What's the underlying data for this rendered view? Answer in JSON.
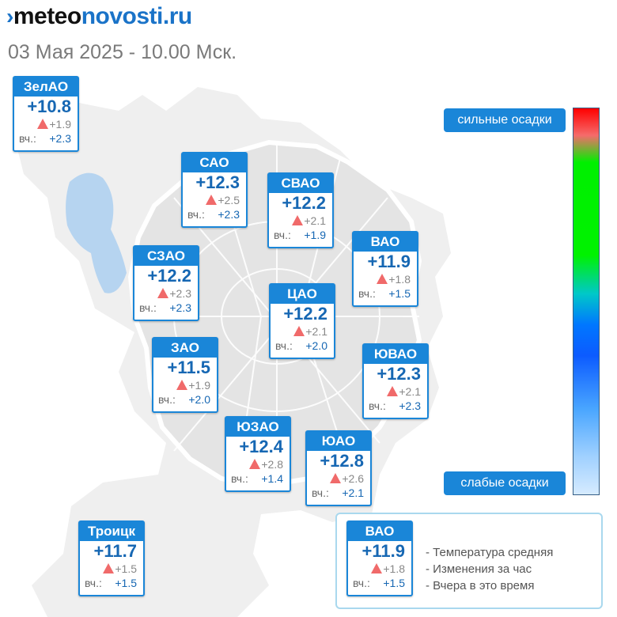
{
  "header": {
    "logo_part1": "meteo",
    "logo_part2": "novosti.ru",
    "subtitle": "03 Мая 2025 - 10.00 Мск."
  },
  "districts": [
    {
      "name": "ЗелАО",
      "temp": "+10.8",
      "change": "+1.9",
      "yesterday_label": "вч.:",
      "yesterday": "+2.3"
    },
    {
      "name": "САО",
      "temp": "+12.3",
      "change": "+2.5",
      "yesterday_label": "вч.:",
      "yesterday": "+2.3"
    },
    {
      "name": "СВАО",
      "temp": "+12.2",
      "change": "+2.1",
      "yesterday_label": "вч.:",
      "yesterday": "+1.9"
    },
    {
      "name": "ВАО",
      "temp": "+11.9",
      "change": "+1.8",
      "yesterday_label": "вч.:",
      "yesterday": "+1.5"
    },
    {
      "name": "СЗАО",
      "temp": "+12.2",
      "change": "+2.3",
      "yesterday_label": "вч.:",
      "yesterday": "+2.3"
    },
    {
      "name": "ЦАО",
      "temp": "+12.2",
      "change": "+2.1",
      "yesterday_label": "вч.:",
      "yesterday": "+2.0"
    },
    {
      "name": "ЗАО",
      "temp": "+11.5",
      "change": "+1.9",
      "yesterday_label": "вч.:",
      "yesterday": "+2.0"
    },
    {
      "name": "ЮВАО",
      "temp": "+12.3",
      "change": "+2.1",
      "yesterday_label": "вч.:",
      "yesterday": "+2.3"
    },
    {
      "name": "ЮЗАО",
      "temp": "+12.4",
      "change": "+2.8",
      "yesterday_label": "вч.:",
      "yesterday": "+1.4"
    },
    {
      "name": "ЮАО",
      "temp": "+12.8",
      "change": "+2.6",
      "yesterday_label": "вч.:",
      "yesterday": "+2.1"
    },
    {
      "name": "Троицк",
      "temp": "+11.7",
      "change": "+1.5",
      "yesterday_label": "вч.:",
      "yesterday": "+1.5"
    }
  ],
  "legend": {
    "sample": {
      "name": "ВАО",
      "temp": "+11.9",
      "change": "+1.8",
      "yesterday_label": "вч.:",
      "yesterday": "+1.5"
    },
    "lines": [
      "- Температура средняя",
      "- Изменения за час",
      "- Вчера в это время"
    ]
  },
  "scale": {
    "top_label": "сильные осадки",
    "bottom_label": "слабые осадки",
    "colors": [
      "#ff0000",
      "#00f000",
      "#0077ff",
      "#d6ebff"
    ]
  },
  "colors": {
    "accent": "#1a86d8",
    "temp_text": "#1667b3",
    "change_up": "#f06a6a"
  }
}
